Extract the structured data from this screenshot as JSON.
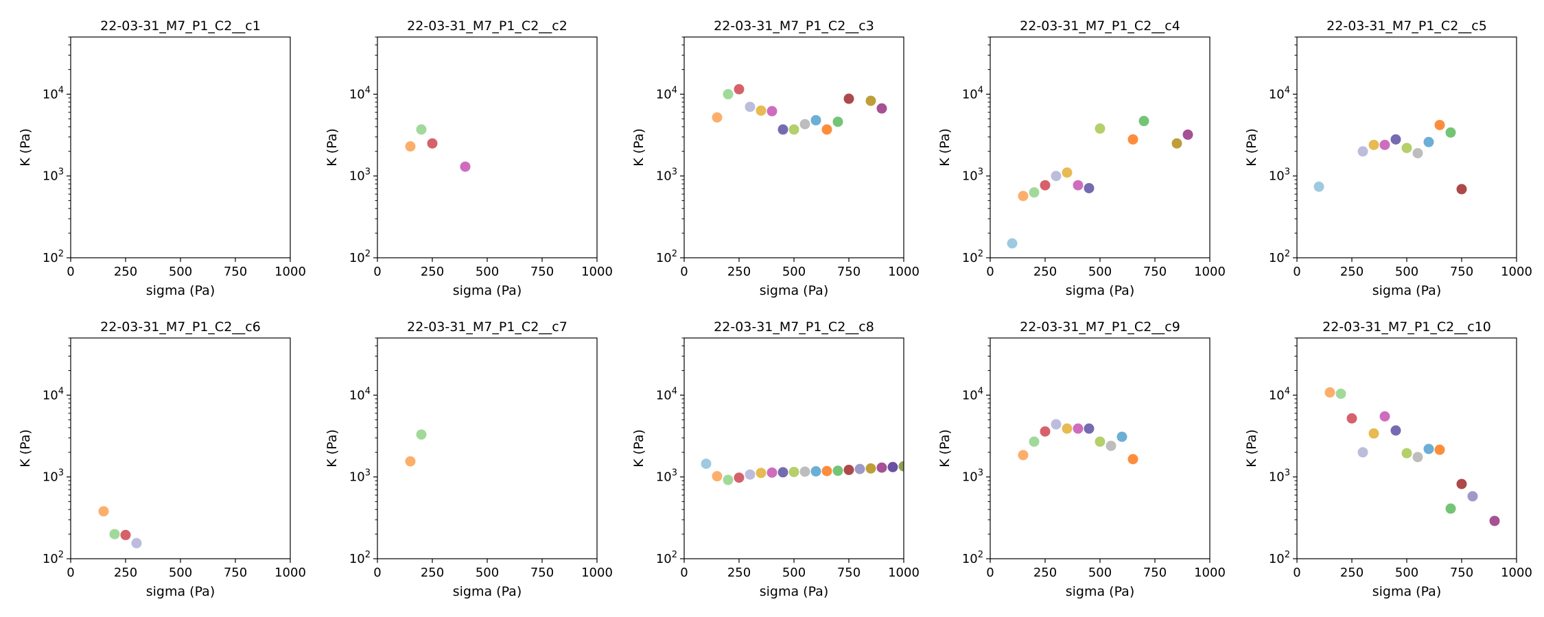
{
  "chart_data": [
    {
      "type": "scatter",
      "title": "22-03-31_M7_P1_C2__c1",
      "xlabel": "sigma (Pa)",
      "ylabel": "K (Pa)",
      "xlim": [
        0,
        1000
      ],
      "ylim": [
        100,
        50000
      ],
      "yscale": "log",
      "xticks": [
        "0",
        "250",
        "500",
        "750",
        "1000"
      ],
      "grid": false,
      "points": []
    },
    {
      "type": "scatter",
      "title": "22-03-31_M7_P1_C2__c2",
      "xlabel": "sigma (Pa)",
      "ylabel": "K (Pa)",
      "xlim": [
        0,
        1000
      ],
      "ylim": [
        100,
        50000
      ],
      "yscale": "log",
      "xticks": [
        "0",
        "250",
        "500",
        "750",
        "1000"
      ],
      "grid": false,
      "points": [
        {
          "x": 150,
          "y": 2300
        },
        {
          "x": 200,
          "y": 3700
        },
        {
          "x": 250,
          "y": 2500
        },
        {
          "x": 400,
          "y": 1300
        }
      ]
    },
    {
      "type": "scatter",
      "title": "22-03-31_M7_P1_C2__c3",
      "xlabel": "sigma (Pa)",
      "ylabel": "K (Pa)",
      "xlim": [
        0,
        1000
      ],
      "ylim": [
        100,
        50000
      ],
      "yscale": "log",
      "xticks": [
        "0",
        "250",
        "500",
        "750",
        "1000"
      ],
      "grid": false,
      "points": [
        {
          "x": 150,
          "y": 5200
        },
        {
          "x": 200,
          "y": 10000
        },
        {
          "x": 250,
          "y": 11500
        },
        {
          "x": 300,
          "y": 7000
        },
        {
          "x": 350,
          "y": 6300
        },
        {
          "x": 400,
          "y": 6200
        },
        {
          "x": 450,
          "y": 3700
        },
        {
          "x": 500,
          "y": 3700
        },
        {
          "x": 550,
          "y": 4300
        },
        {
          "x": 600,
          "y": 4800
        },
        {
          "x": 650,
          "y": 3700
        },
        {
          "x": 700,
          "y": 4600
        },
        {
          "x": 750,
          "y": 8800
        },
        {
          "x": 850,
          "y": 8300
        },
        {
          "x": 900,
          "y": 6700
        }
      ]
    },
    {
      "type": "scatter",
      "title": "22-03-31_M7_P1_C2__c4",
      "xlabel": "sigma (Pa)",
      "ylabel": "K (Pa)",
      "xlim": [
        0,
        1000
      ],
      "ylim": [
        100,
        50000
      ],
      "yscale": "log",
      "xticks": [
        "0",
        "250",
        "500",
        "750",
        "1000"
      ],
      "grid": false,
      "points": [
        {
          "x": 100,
          "y": 150
        },
        {
          "x": 150,
          "y": 570
        },
        {
          "x": 200,
          "y": 630
        },
        {
          "x": 250,
          "y": 770
        },
        {
          "x": 300,
          "y": 1000
        },
        {
          "x": 350,
          "y": 1100
        },
        {
          "x": 400,
          "y": 770
        },
        {
          "x": 450,
          "y": 710
        },
        {
          "x": 500,
          "y": 3800
        },
        {
          "x": 650,
          "y": 2800
        },
        {
          "x": 700,
          "y": 4700
        },
        {
          "x": 850,
          "y": 2500
        },
        {
          "x": 900,
          "y": 3200
        }
      ]
    },
    {
      "type": "scatter",
      "title": "22-03-31_M7_P1_C2__c5",
      "xlabel": "sigma (Pa)",
      "ylabel": "K (Pa)",
      "xlim": [
        0,
        1000
      ],
      "ylim": [
        100,
        50000
      ],
      "yscale": "log",
      "xticks": [
        "0",
        "250",
        "500",
        "750",
        "1000"
      ],
      "grid": false,
      "points": [
        {
          "x": 100,
          "y": 740
        },
        {
          "x": 300,
          "y": 2000
        },
        {
          "x": 350,
          "y": 2400
        },
        {
          "x": 400,
          "y": 2400
        },
        {
          "x": 450,
          "y": 2800
        },
        {
          "x": 500,
          "y": 2200
        },
        {
          "x": 550,
          "y": 1900
        },
        {
          "x": 600,
          "y": 2600
        },
        {
          "x": 650,
          "y": 4200
        },
        {
          "x": 700,
          "y": 3400
        },
        {
          "x": 750,
          "y": 690
        }
      ]
    },
    {
      "type": "scatter",
      "title": "22-03-31_M7_P1_C2__c6",
      "xlabel": "sigma (Pa)",
      "ylabel": "K (Pa)",
      "xlim": [
        0,
        1000
      ],
      "ylim": [
        100,
        50000
      ],
      "yscale": "log",
      "xticks": [
        "0",
        "250",
        "500",
        "750",
        "1000"
      ],
      "grid": false,
      "points": [
        {
          "x": 150,
          "y": 380
        },
        {
          "x": 200,
          "y": 200
        },
        {
          "x": 250,
          "y": 195
        },
        {
          "x": 300,
          "y": 155
        }
      ]
    },
    {
      "type": "scatter",
      "title": "22-03-31_M7_P1_C2__c7",
      "xlabel": "sigma (Pa)",
      "ylabel": "K (Pa)",
      "xlim": [
        0,
        1000
      ],
      "ylim": [
        100,
        50000
      ],
      "yscale": "log",
      "xticks": [
        "0",
        "250",
        "500",
        "750",
        "1000"
      ],
      "grid": false,
      "points": [
        {
          "x": 150,
          "y": 1550
        },
        {
          "x": 200,
          "y": 3300
        }
      ]
    },
    {
      "type": "scatter",
      "title": "22-03-31_M7_P1_C2__c8",
      "xlabel": "sigma (Pa)",
      "ylabel": "K (Pa)",
      "xlim": [
        0,
        1000
      ],
      "ylim": [
        100,
        50000
      ],
      "yscale": "log",
      "xticks": [
        "0",
        "250",
        "500",
        "750",
        "1000"
      ],
      "grid": false,
      "points": [
        {
          "x": 100,
          "y": 1450
        },
        {
          "x": 150,
          "y": 1020
        },
        {
          "x": 200,
          "y": 920
        },
        {
          "x": 250,
          "y": 980
        },
        {
          "x": 300,
          "y": 1070
        },
        {
          "x": 350,
          "y": 1120
        },
        {
          "x": 400,
          "y": 1130
        },
        {
          "x": 450,
          "y": 1140
        },
        {
          "x": 500,
          "y": 1150
        },
        {
          "x": 550,
          "y": 1160
        },
        {
          "x": 600,
          "y": 1170
        },
        {
          "x": 650,
          "y": 1180
        },
        {
          "x": 700,
          "y": 1190
        },
        {
          "x": 750,
          "y": 1220
        },
        {
          "x": 800,
          "y": 1250
        },
        {
          "x": 850,
          "y": 1270
        },
        {
          "x": 900,
          "y": 1300
        },
        {
          "x": 950,
          "y": 1320
        },
        {
          "x": 1000,
          "y": 1350
        }
      ]
    },
    {
      "type": "scatter",
      "title": "22-03-31_M7_P1_C2__c9",
      "xlabel": "sigma (Pa)",
      "ylabel": "K (Pa)",
      "xlim": [
        0,
        1000
      ],
      "ylim": [
        100,
        50000
      ],
      "yscale": "log",
      "xticks": [
        "0",
        "250",
        "500",
        "750",
        "1000"
      ],
      "grid": false,
      "points": [
        {
          "x": 150,
          "y": 1850
        },
        {
          "x": 200,
          "y": 2700
        },
        {
          "x": 250,
          "y": 3600
        },
        {
          "x": 300,
          "y": 4400
        },
        {
          "x": 350,
          "y": 3900
        },
        {
          "x": 400,
          "y": 3900
        },
        {
          "x": 450,
          "y": 3900
        },
        {
          "x": 500,
          "y": 2700
        },
        {
          "x": 550,
          "y": 2400
        },
        {
          "x": 600,
          "y": 3100
        },
        {
          "x": 650,
          "y": 1650
        }
      ]
    },
    {
      "type": "scatter",
      "title": "22-03-31_M7_P1_C2__c10",
      "xlabel": "sigma (Pa)",
      "ylabel": "K (Pa)",
      "xlim": [
        0,
        1000
      ],
      "ylim": [
        100,
        50000
      ],
      "yscale": "log",
      "xticks": [
        "0",
        "250",
        "500",
        "750",
        "1000"
      ],
      "grid": false,
      "points": [
        {
          "x": 150,
          "y": 10800
        },
        {
          "x": 200,
          "y": 10400
        },
        {
          "x": 250,
          "y": 5200
        },
        {
          "x": 300,
          "y": 2000
        },
        {
          "x": 350,
          "y": 3400
        },
        {
          "x": 400,
          "y": 5500
        },
        {
          "x": 450,
          "y": 3700
        },
        {
          "x": 500,
          "y": 1950
        },
        {
          "x": 550,
          "y": 1750
        },
        {
          "x": 600,
          "y": 2200
        },
        {
          "x": 650,
          "y": 2150
        },
        {
          "x": 700,
          "y": 410
        },
        {
          "x": 750,
          "y": 820
        },
        {
          "x": 800,
          "y": 580
        },
        {
          "x": 900,
          "y": 290
        }
      ]
    }
  ],
  "colors": {
    "100": "#9ecae1",
    "150": "#fdae6b",
    "200": "#a1d99b",
    "250": "#d6616b",
    "300": "#bcbddc",
    "350": "#e7ba52",
    "400": "#ce6dbd",
    "450": "#756bb1",
    "500": "#b5cf6b",
    "550": "#bdbdbd",
    "600": "#6baed6",
    "650": "#fd8d3c",
    "700": "#74c476",
    "750": "#ad494a",
    "800": "#9e9ac8",
    "850": "#bd9e39",
    "900": "#a55194",
    "950": "#6a51a3",
    "1000": "#8ca252"
  }
}
